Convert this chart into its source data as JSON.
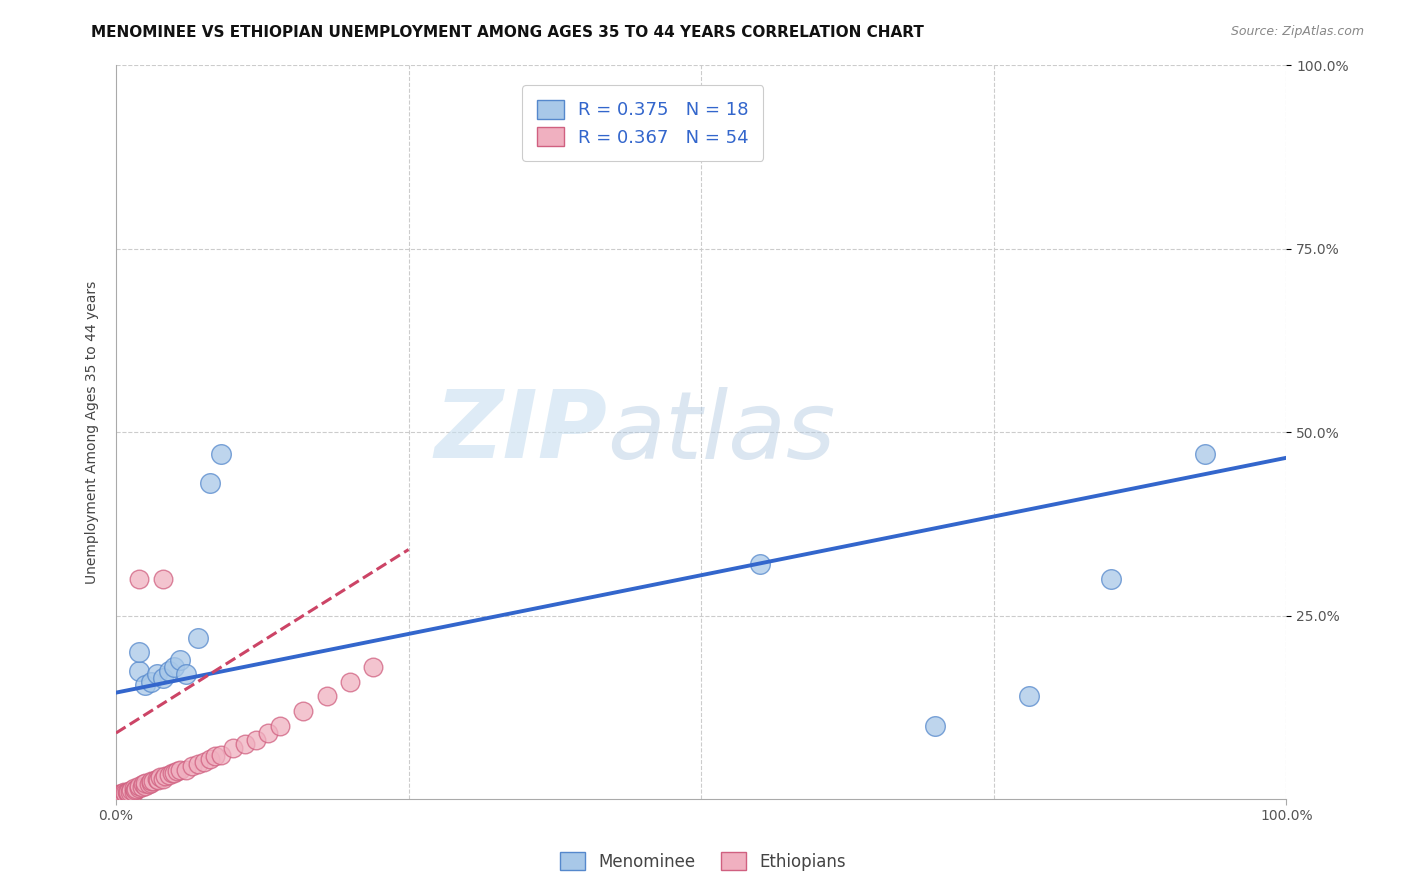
{
  "title": "MENOMINEE VS ETHIOPIAN UNEMPLOYMENT AMONG AGES 35 TO 44 YEARS CORRELATION CHART",
  "source_text": "Source: ZipAtlas.com",
  "ylabel": "Unemployment Among Ages 35 to 44 years",
  "watermark_zip": "ZIP",
  "watermark_atlas": "atlas",
  "bottom_legend": [
    "Menominee",
    "Ethiopians"
  ],
  "xlim": [
    0,
    1
  ],
  "ylim": [
    0,
    1
  ],
  "menominee_scatter_color": "#a8c8e8",
  "menominee_edge_color": "#5588cc",
  "ethiopian_scatter_color": "#f0b0c0",
  "ethiopian_edge_color": "#d06080",
  "menominee_line_color": "#3366cc",
  "ethiopian_line_color": "#cc4466",
  "background_color": "#ffffff",
  "grid_color": "#cccccc",
  "menominee_x": [
    0.02,
    0.025,
    0.03,
    0.035,
    0.04,
    0.045,
    0.05,
    0.055,
    0.06,
    0.07,
    0.08,
    0.09,
    0.02,
    0.55,
    0.7,
    0.78,
    0.85,
    0.93
  ],
  "menominee_y": [
    0.175,
    0.155,
    0.16,
    0.17,
    0.165,
    0.175,
    0.18,
    0.19,
    0.17,
    0.22,
    0.43,
    0.47,
    0.2,
    0.32,
    0.1,
    0.14,
    0.3,
    0.47
  ],
  "ethiopian_x": [
    0.002,
    0.003,
    0.004,
    0.005,
    0.006,
    0.007,
    0.008,
    0.009,
    0.01,
    0.01,
    0.012,
    0.013,
    0.015,
    0.015,
    0.016,
    0.017,
    0.02,
    0.02,
    0.022,
    0.023,
    0.025,
    0.025,
    0.028,
    0.03,
    0.03,
    0.032,
    0.035,
    0.036,
    0.038,
    0.04,
    0.042,
    0.045,
    0.048,
    0.05,
    0.052,
    0.055,
    0.06,
    0.065,
    0.07,
    0.075,
    0.08,
    0.085,
    0.09,
    0.1,
    0.11,
    0.12,
    0.13,
    0.14,
    0.02,
    0.04,
    0.16,
    0.18,
    0.2,
    0.22
  ],
  "ethiopian_y": [
    0.005,
    0.007,
    0.006,
    0.008,
    0.007,
    0.009,
    0.008,
    0.01,
    0.008,
    0.01,
    0.009,
    0.012,
    0.01,
    0.015,
    0.012,
    0.014,
    0.015,
    0.018,
    0.016,
    0.02,
    0.018,
    0.022,
    0.02,
    0.022,
    0.025,
    0.024,
    0.028,
    0.026,
    0.03,
    0.028,
    0.032,
    0.033,
    0.035,
    0.035,
    0.038,
    0.04,
    0.04,
    0.045,
    0.048,
    0.05,
    0.055,
    0.058,
    0.06,
    0.07,
    0.075,
    0.08,
    0.09,
    0.1,
    0.3,
    0.3,
    0.12,
    0.14,
    0.16,
    0.18
  ],
  "men_line_x0": 0.0,
  "men_line_x1": 1.0,
  "men_line_y0": 0.145,
  "men_line_y1": 0.465,
  "eth_line_x0": 0.0,
  "eth_line_x1": 0.25,
  "eth_line_y0": 0.09,
  "eth_line_y1": 0.34,
  "title_fontsize": 11,
  "axis_label_fontsize": 10,
  "tick_fontsize": 10
}
